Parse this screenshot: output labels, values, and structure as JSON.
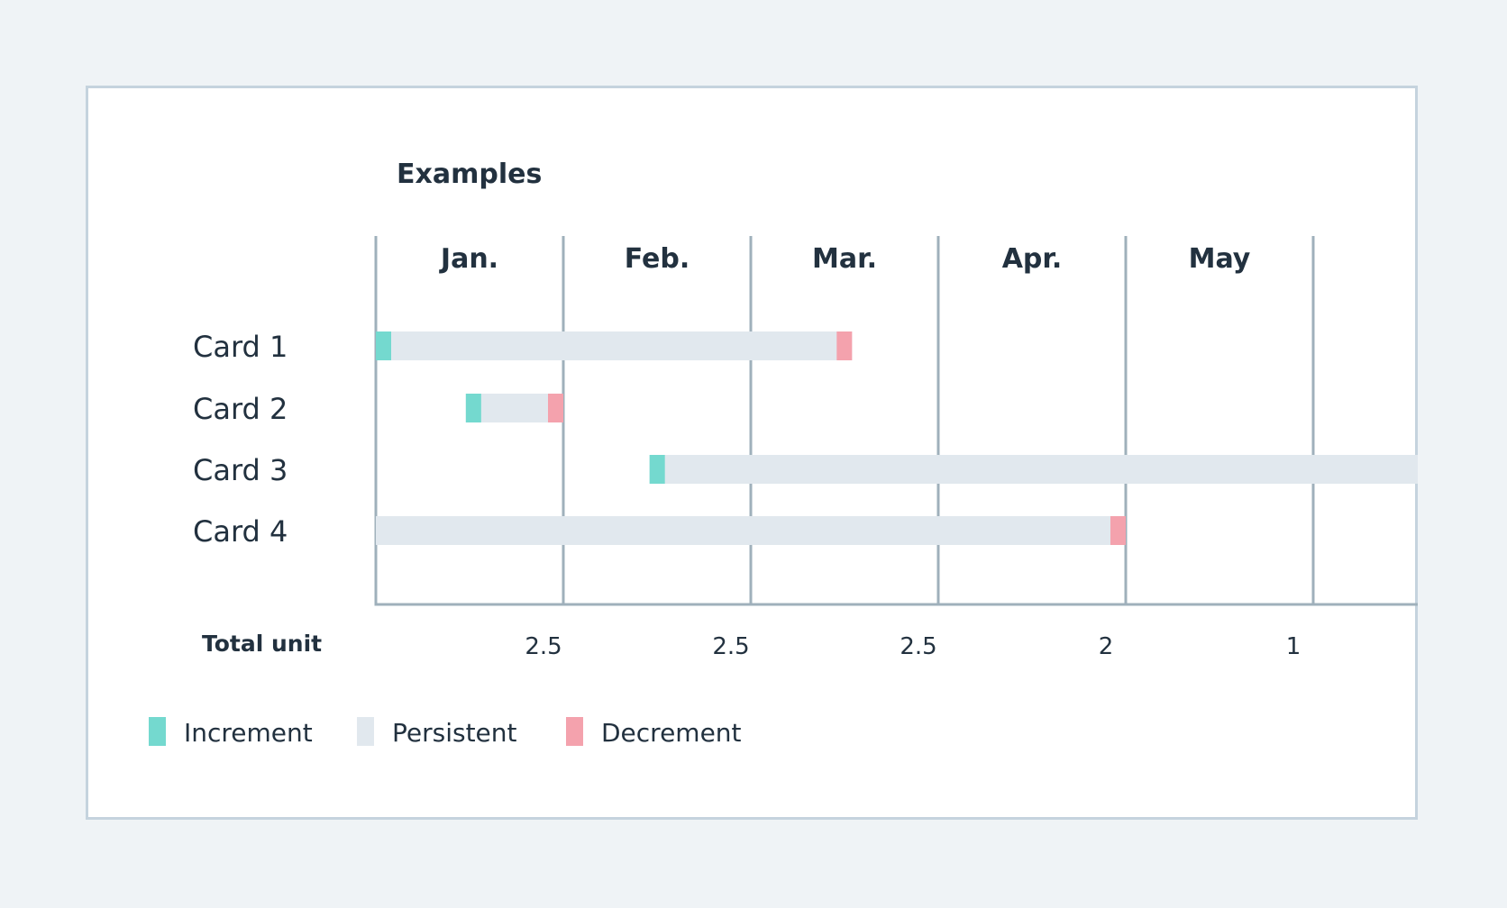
{
  "chart_data": {
    "type": "gantt",
    "title": "Examples",
    "months": [
      "Jan.",
      "Feb.",
      "Mar.",
      "Apr.",
      "May"
    ],
    "rows": [
      {
        "label": "Card 1",
        "start": 0.0,
        "end": 2.54,
        "increment": true,
        "decrement": true
      },
      {
        "label": "Card 2",
        "start": 0.48,
        "end": 1.0,
        "increment": true,
        "decrement": true
      },
      {
        "label": "Card 3",
        "start": 1.46,
        "end": 5.57,
        "increment": true,
        "decrement": false
      },
      {
        "label": "Card 4",
        "start": 0.0,
        "end": 4.0,
        "increment": false,
        "decrement": true
      }
    ],
    "total_label": "Total unit",
    "totals": [
      "2.5",
      "2.5",
      "2.5",
      "2",
      "1"
    ],
    "legend": [
      {
        "label": "Increment",
        "color": "#74d9cf"
      },
      {
        "label": "Persistent",
        "color": "#e1e8ee"
      },
      {
        "label": "Decrement",
        "color": "#f4a2ad"
      }
    ],
    "colors": {
      "increment": "#74d9cf",
      "persistent": "#e1e8ee",
      "decrement": "#f4a2ad",
      "grid": "#9fb0bb",
      "text": "#22313f"
    }
  }
}
